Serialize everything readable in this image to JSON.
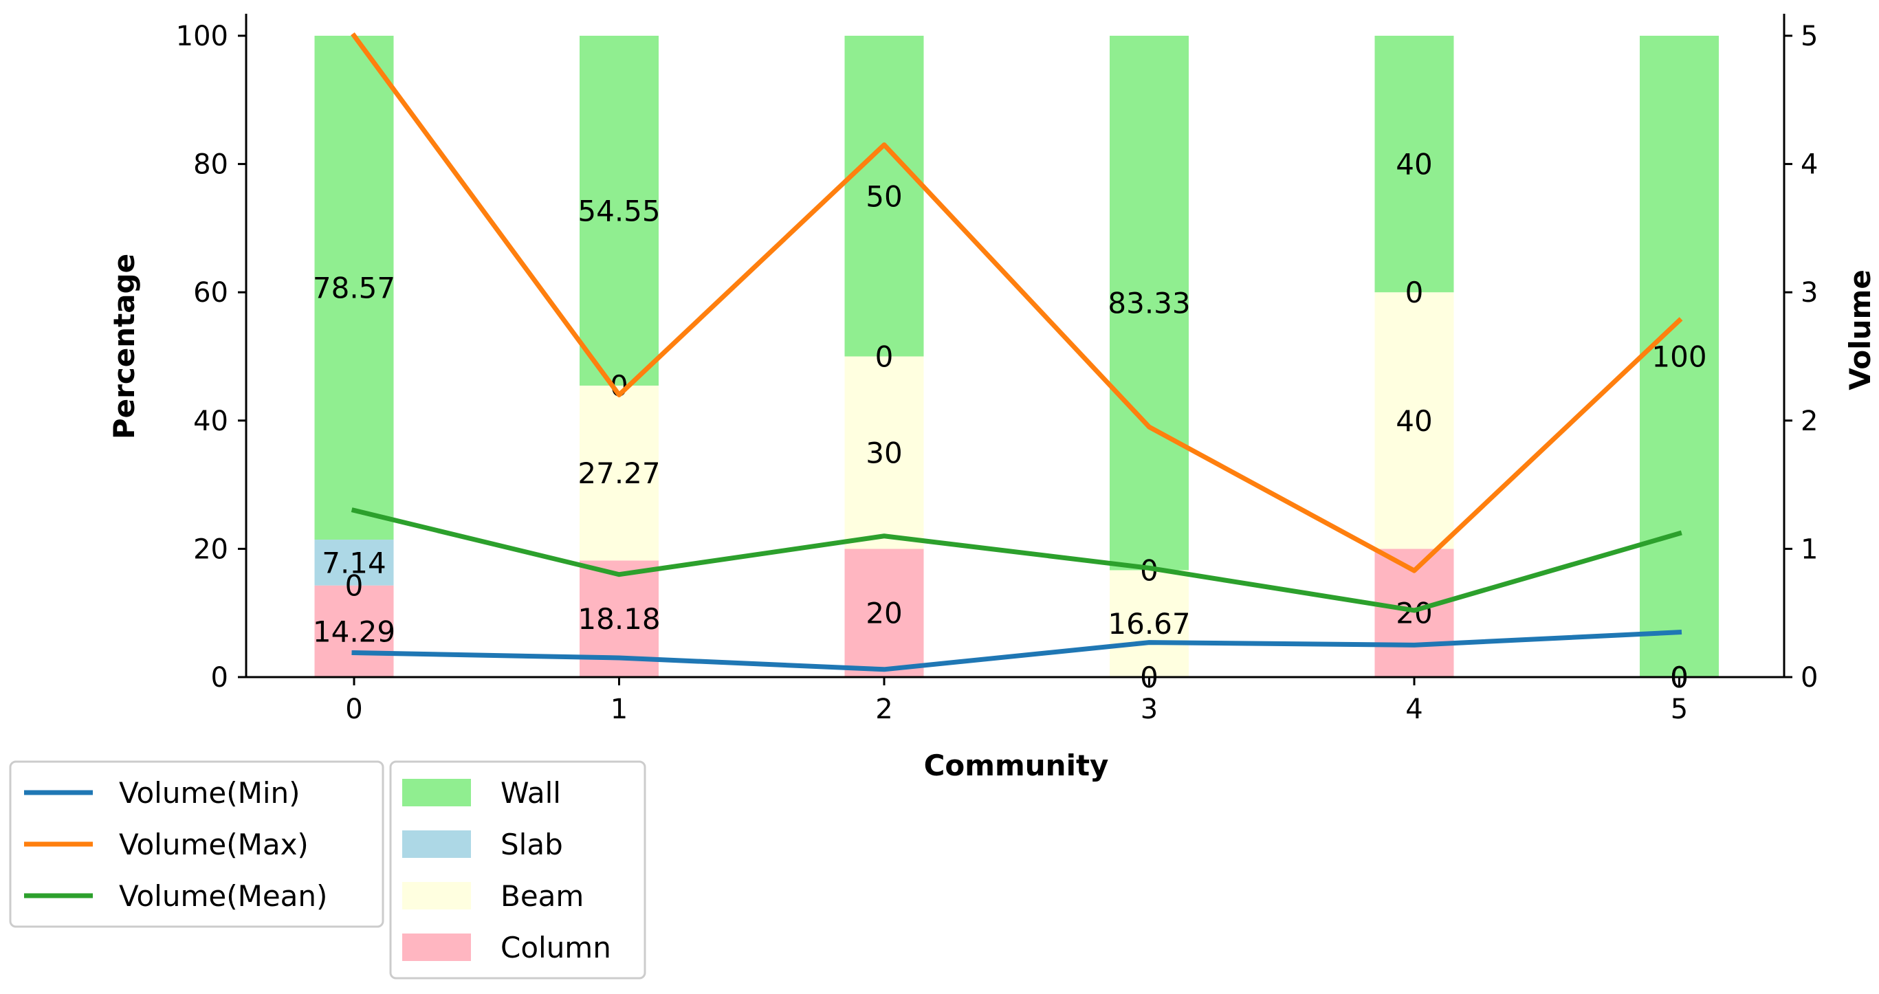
{
  "chart_data": {
    "type": "bar",
    "stacked": true,
    "xlabel": "Community",
    "ylabel": "Percentage",
    "y2label": "Volume",
    "ylim": [
      0,
      100
    ],
    "y2lim": [
      0,
      5
    ],
    "categories": [
      "0",
      "1",
      "2",
      "3",
      "4",
      "5"
    ],
    "yticks": [
      "0",
      "20",
      "40",
      "60",
      "80",
      "100"
    ],
    "y2ticks": [
      "0",
      "1",
      "2",
      "3",
      "4",
      "5"
    ],
    "bar_series": [
      {
        "name": "Column",
        "color": "#ffb6c1",
        "values": [
          14.29,
          18.18,
          20,
          0,
          20,
          0
        ],
        "labels": [
          "14.29",
          "18.18",
          "20",
          "0",
          "20",
          "0"
        ]
      },
      {
        "name": "Beam",
        "color": "#ffffe0",
        "values": [
          0,
          27.27,
          30,
          16.67,
          40,
          0
        ],
        "labels": [
          "0",
          "27.27",
          "30",
          "16.67",
          "40",
          "0"
        ]
      },
      {
        "name": "Slab",
        "color": "#add8e6",
        "values": [
          7.14,
          0,
          0,
          0,
          0,
          0
        ],
        "labels": [
          "7.14",
          "0",
          "0",
          "0",
          "0",
          "0"
        ]
      },
      {
        "name": "Wall",
        "color": "#90ee90",
        "values": [
          78.57,
          54.55,
          50,
          83.33,
          40,
          100
        ],
        "labels": [
          "78.57",
          "54.55",
          "50",
          "83.33",
          "40",
          "100"
        ]
      }
    ],
    "line_series": [
      {
        "name": "Volume(Min)",
        "color": "#1f77b4",
        "values": [
          0.19,
          0.15,
          0.06,
          0.27,
          0.25,
          0.35
        ]
      },
      {
        "name": "Volume(Max)",
        "color": "#ff7f0e",
        "values": [
          5.0,
          2.2,
          4.15,
          1.95,
          0.83,
          2.78
        ]
      },
      {
        "name": "Volume(Mean)",
        "color": "#2ca02c",
        "values": [
          1.3,
          0.8,
          1.1,
          0.85,
          0.52,
          1.12
        ]
      }
    ],
    "legend_lines": [
      "Volume(Min)",
      "Volume(Max)",
      "Volume(Mean)"
    ],
    "legend_bars": [
      "Wall",
      "Slab",
      "Beam",
      "Column"
    ]
  }
}
